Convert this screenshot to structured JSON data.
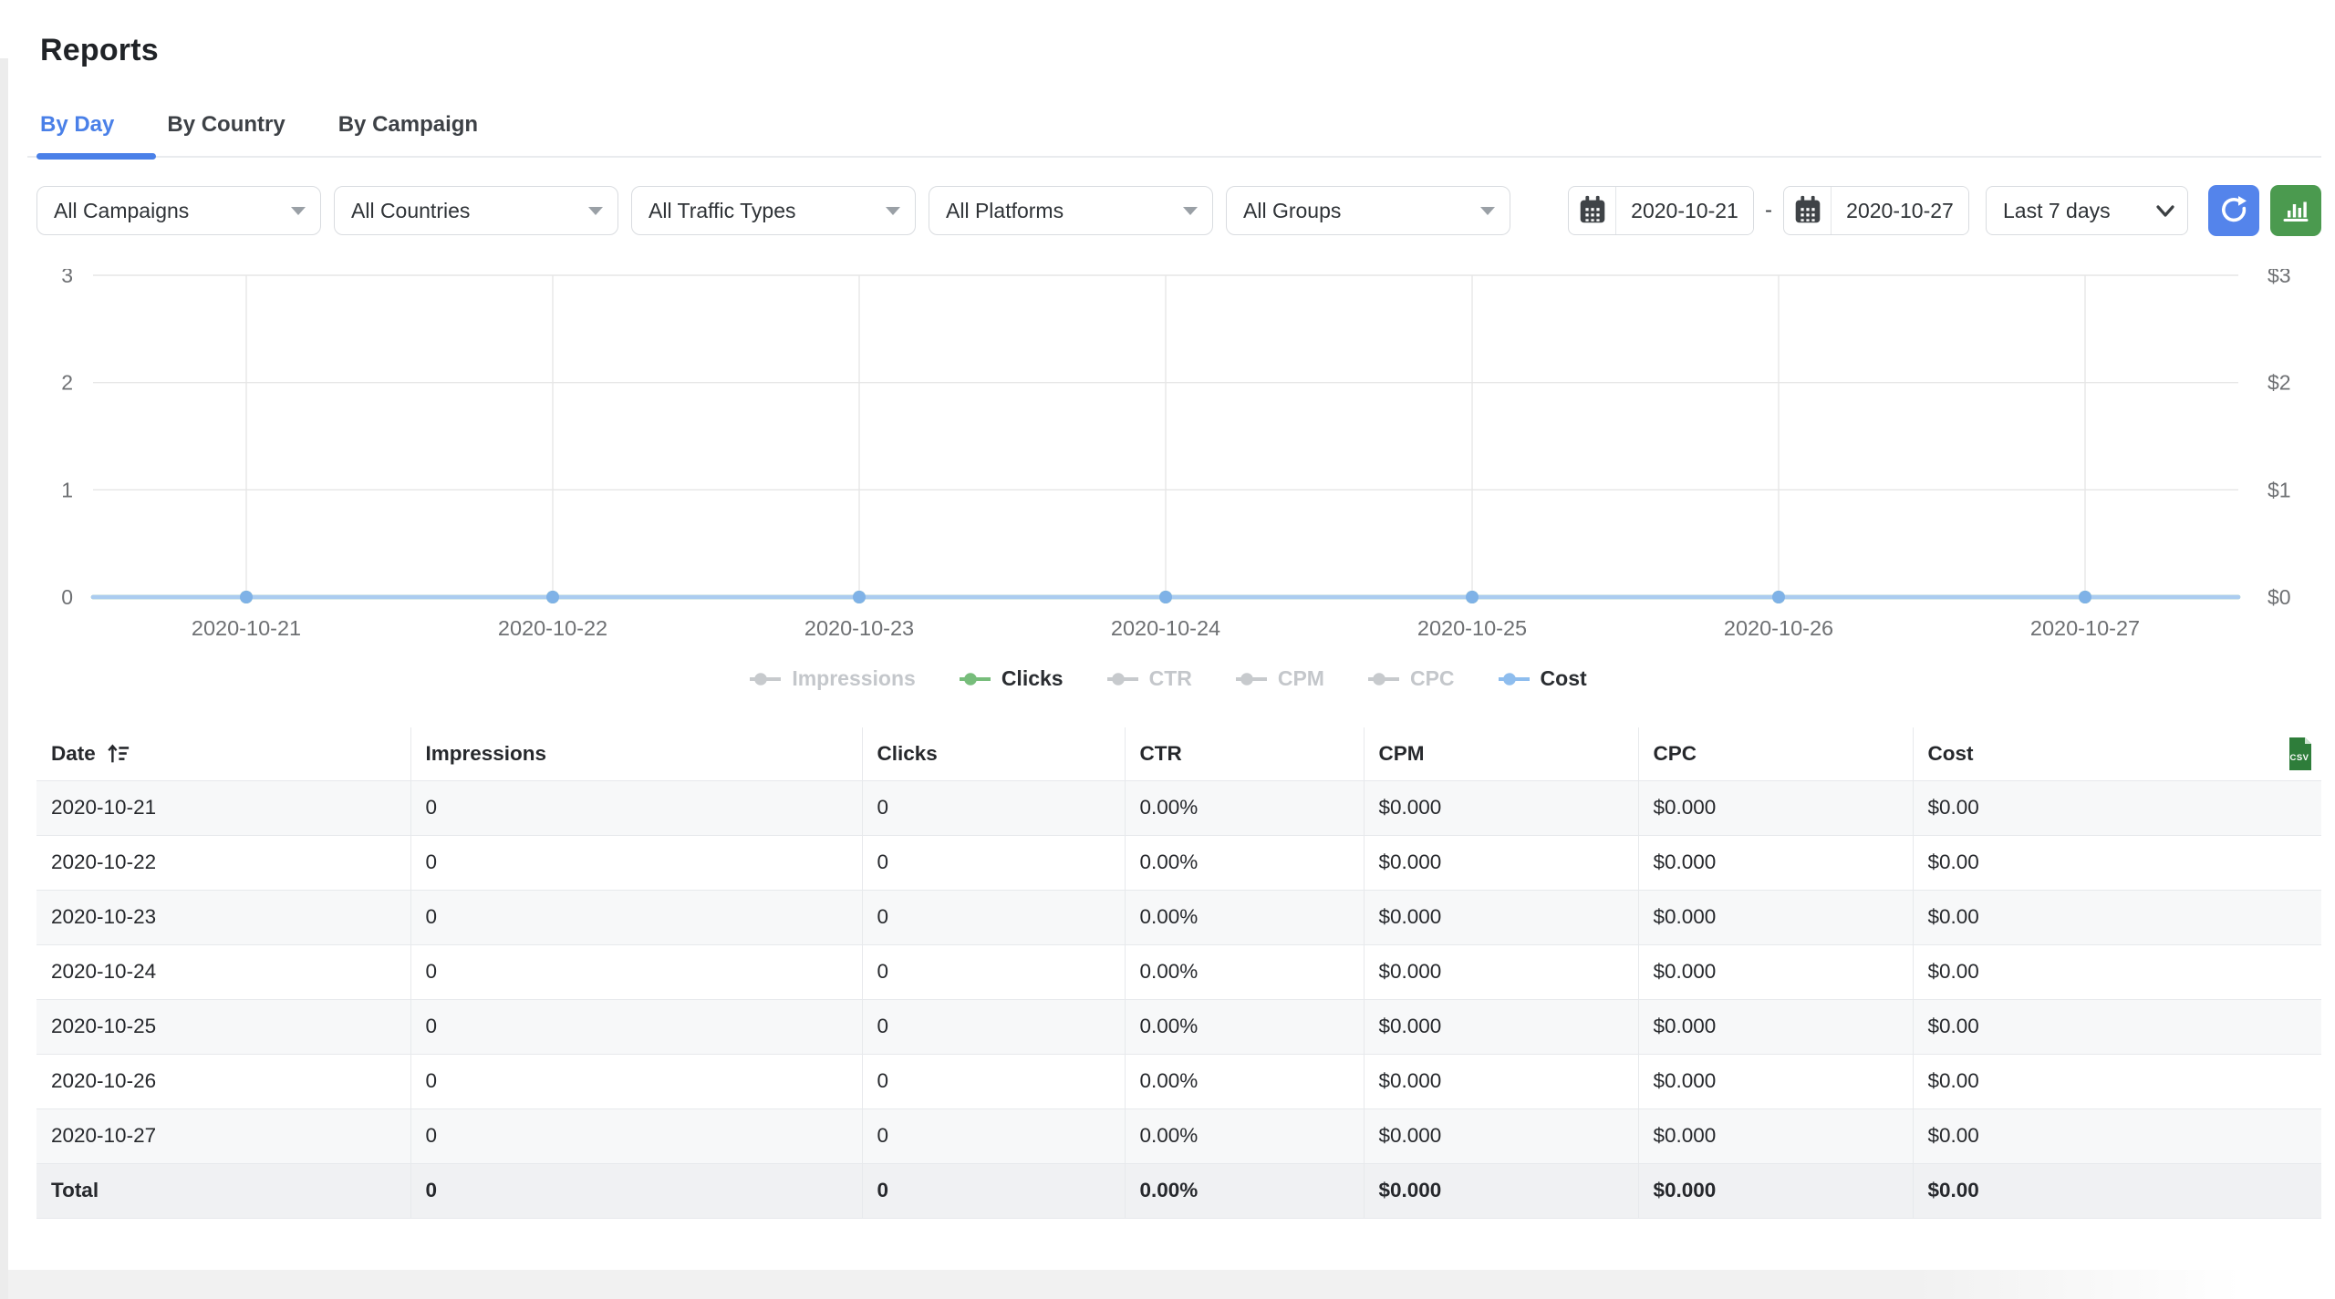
{
  "page": {
    "title": "Reports"
  },
  "tabs": [
    {
      "label": "By Day",
      "active": true
    },
    {
      "label": "By Country",
      "active": false
    },
    {
      "label": "By Campaign",
      "active": false
    }
  ],
  "filters": {
    "dropdowns": [
      {
        "label": "All Campaigns"
      },
      {
        "label": "All Countries"
      },
      {
        "label": "All Traffic Types"
      },
      {
        "label": "All Platforms"
      },
      {
        "label": "All Groups"
      }
    ],
    "date_from": "2020-10-21",
    "date_to": "2020-10-27",
    "separator": "-",
    "range_label": "Last 7 days"
  },
  "colors": {
    "accent_blue": "#4a80e8",
    "refresh_button_blue": "#5484eb",
    "chart_button_green": "#4b9a4f",
    "csv_green": "#2e7d3a",
    "line_blue": "#abccf0",
    "dot_blue": "#7fb2e7",
    "legend_green": "#77bd7b",
    "legend_blue": "#8ebdee",
    "legend_disabled_gray": "#c7cacd"
  },
  "chart_data": {
    "type": "line",
    "x": [
      "2020-10-21",
      "2020-10-22",
      "2020-10-23",
      "2020-10-24",
      "2020-10-25",
      "2020-10-26",
      "2020-10-27"
    ],
    "series": [
      {
        "name": "Impressions",
        "values": [
          0,
          0,
          0,
          0,
          0,
          0,
          0
        ],
        "enabled": false,
        "color": "#c7cacd"
      },
      {
        "name": "Clicks",
        "values": [
          0,
          0,
          0,
          0,
          0,
          0,
          0
        ],
        "enabled": true,
        "color": "#77bd7b",
        "line_color": "#77bd7b",
        "dot_color": "#77bd7b"
      },
      {
        "name": "CTR",
        "values": [
          0,
          0,
          0,
          0,
          0,
          0,
          0
        ],
        "enabled": false,
        "color": "#c7cacd"
      },
      {
        "name": "CPM",
        "values": [
          0,
          0,
          0,
          0,
          0,
          0,
          0
        ],
        "enabled": false,
        "color": "#c7cacd"
      },
      {
        "name": "CPC",
        "values": [
          0,
          0,
          0,
          0,
          0,
          0,
          0
        ],
        "enabled": false,
        "color": "#c7cacd"
      },
      {
        "name": "Cost",
        "values": [
          0,
          0,
          0,
          0,
          0,
          0,
          0
        ],
        "enabled": true,
        "color": "#8ebdee",
        "line_color": "#abccf0",
        "dot_color": "#7fb2e7"
      }
    ],
    "left_axis": {
      "labels": [
        "0",
        "1",
        "2",
        "3"
      ],
      "range": [
        0,
        3
      ]
    },
    "right_axis": {
      "labels": [
        "$0",
        "$1",
        "$2",
        "$3"
      ],
      "range": [
        0,
        3
      ]
    },
    "grid": true,
    "legend_position": "bottom"
  },
  "table": {
    "columns": [
      "Date",
      "Impressions",
      "Clicks",
      "CTR",
      "CPM",
      "CPC",
      "Cost"
    ],
    "sorted_by": "Date",
    "rows": [
      [
        "2020-10-21",
        "0",
        "0",
        "0.00%",
        "$0.000",
        "$0.000",
        "$0.00"
      ],
      [
        "2020-10-22",
        "0",
        "0",
        "0.00%",
        "$0.000",
        "$0.000",
        "$0.00"
      ],
      [
        "2020-10-23",
        "0",
        "0",
        "0.00%",
        "$0.000",
        "$0.000",
        "$0.00"
      ],
      [
        "2020-10-24",
        "0",
        "0",
        "0.00%",
        "$0.000",
        "$0.000",
        "$0.00"
      ],
      [
        "2020-10-25",
        "0",
        "0",
        "0.00%",
        "$0.000",
        "$0.000",
        "$0.00"
      ],
      [
        "2020-10-26",
        "0",
        "0",
        "0.00%",
        "$0.000",
        "$0.000",
        "$0.00"
      ],
      [
        "2020-10-27",
        "0",
        "0",
        "0.00%",
        "$0.000",
        "$0.000",
        "$0.00"
      ]
    ],
    "total": [
      "Total",
      "0",
      "0",
      "0.00%",
      "$0.000",
      "$0.000",
      "$0.00"
    ],
    "csv_label": "CSV"
  }
}
